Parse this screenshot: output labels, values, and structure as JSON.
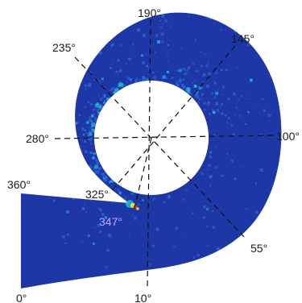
{
  "figure": {
    "colors": {
      "background": "#ffffff",
      "field_base": "#1d37a6",
      "speckle_light": "#2f62d6",
      "speckle_cyan": "#27b9d8",
      "hot_yellow": "#f2e03a",
      "hot_red": "#e24a1f",
      "inner_hole": "#ffffff",
      "guide_line": "#111111",
      "label_text": "#1a1a1a",
      "highlight_label": "#c9a3ff"
    },
    "angle_labels": [
      {
        "id": "a190",
        "text": "190°"
      },
      {
        "id": "a145",
        "text": "145°"
      },
      {
        "id": "a235",
        "text": "235°"
      },
      {
        "id": "a280",
        "text": "280°"
      },
      {
        "id": "a100",
        "text": "100°"
      },
      {
        "id": "a360",
        "text": "360°"
      },
      {
        "id": "a325",
        "text": "325°"
      },
      {
        "id": "a347",
        "text": "347°",
        "highlight": true
      },
      {
        "id": "a55",
        "text": "55°"
      },
      {
        "id": "a0",
        "text": "0°"
      },
      {
        "id": "a10",
        "text": "10°"
      }
    ]
  }
}
